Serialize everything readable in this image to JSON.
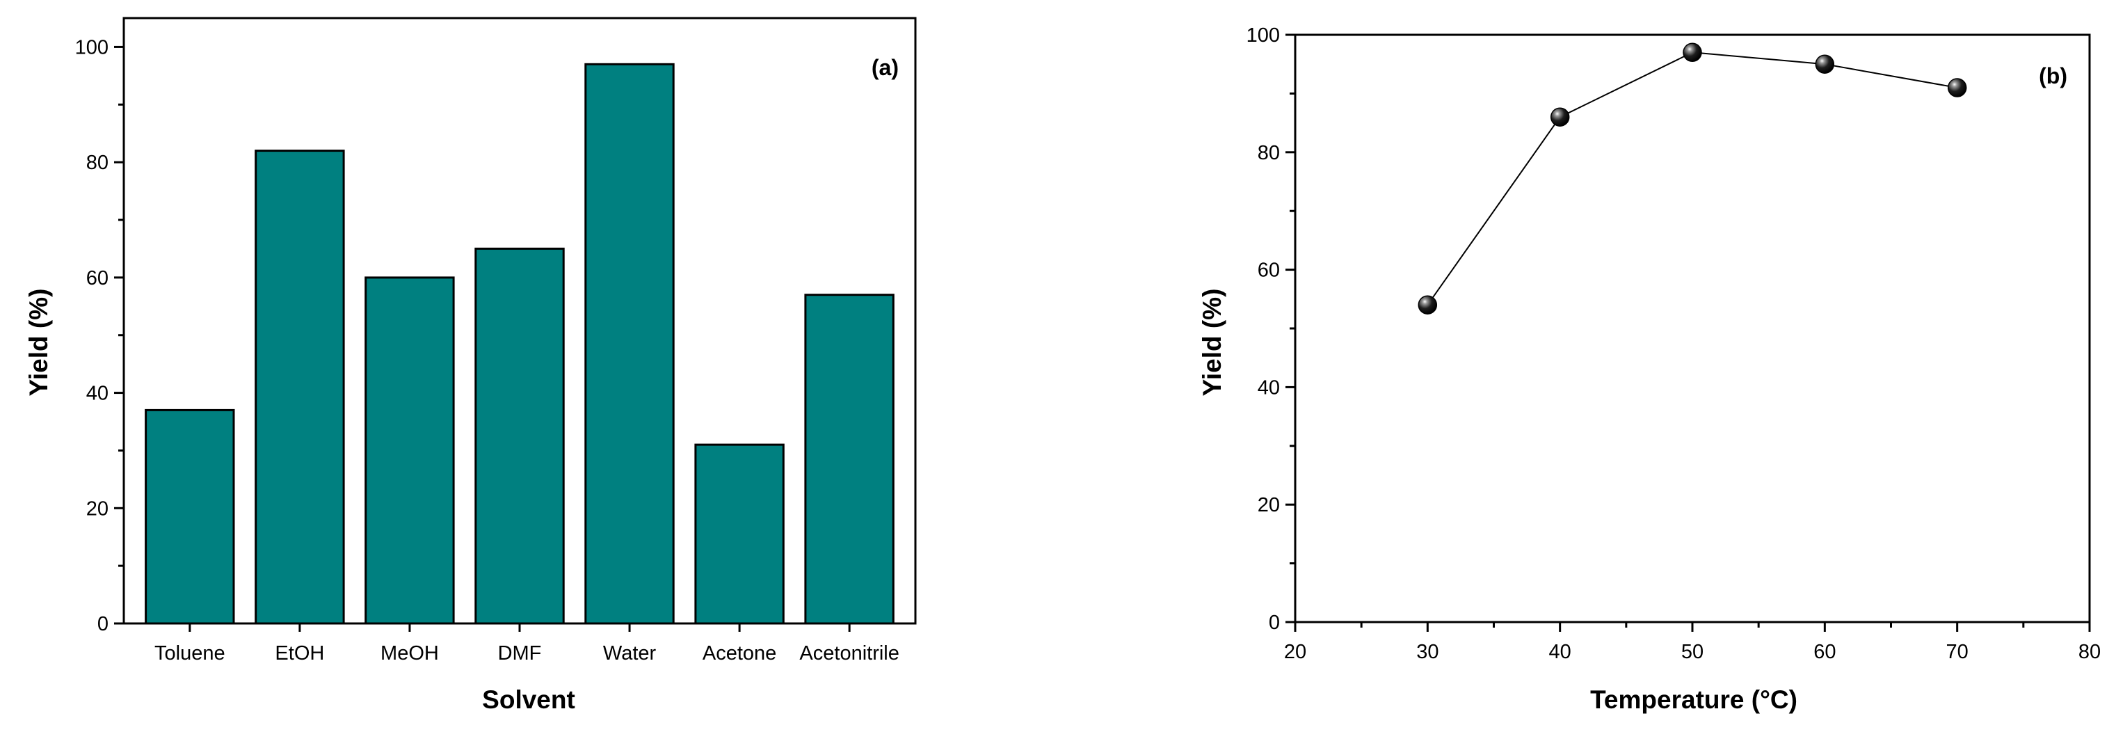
{
  "chart_data": [
    {
      "type": "bar",
      "panel_label": "(a)",
      "categories": [
        "Toluene",
        "EtOH",
        "MeOH",
        "DMF",
        "Water",
        "Acetone",
        "Acetonitrile"
      ],
      "values": [
        37,
        82,
        60,
        65,
        97,
        31,
        57
      ],
      "xlabel": "Solvent",
      "ylabel": "Yield (%)",
      "ylim": [
        0,
        105
      ],
      "yticks": [
        0,
        20,
        40,
        60,
        80,
        100
      ],
      "grid": false,
      "legend": "none",
      "bar_color": "#008080",
      "edge_color": "#000000"
    },
    {
      "type": "line",
      "panel_label": "(b)",
      "x": [
        30,
        40,
        50,
        60,
        70
      ],
      "y": [
        54,
        86,
        97,
        95,
        91
      ],
      "xlabel": "Temperature (°C)",
      "ylabel": "Yield (%)",
      "xlim": [
        20,
        80
      ],
      "ylim": [
        0,
        100
      ],
      "xticks": [
        20,
        30,
        40,
        50,
        60,
        70,
        80
      ],
      "yticks": [
        0,
        20,
        40,
        60,
        80,
        100
      ],
      "grid": false,
      "legend": "none",
      "marker": "sphere",
      "marker_color": "#000000",
      "line_color": "#000000"
    }
  ]
}
